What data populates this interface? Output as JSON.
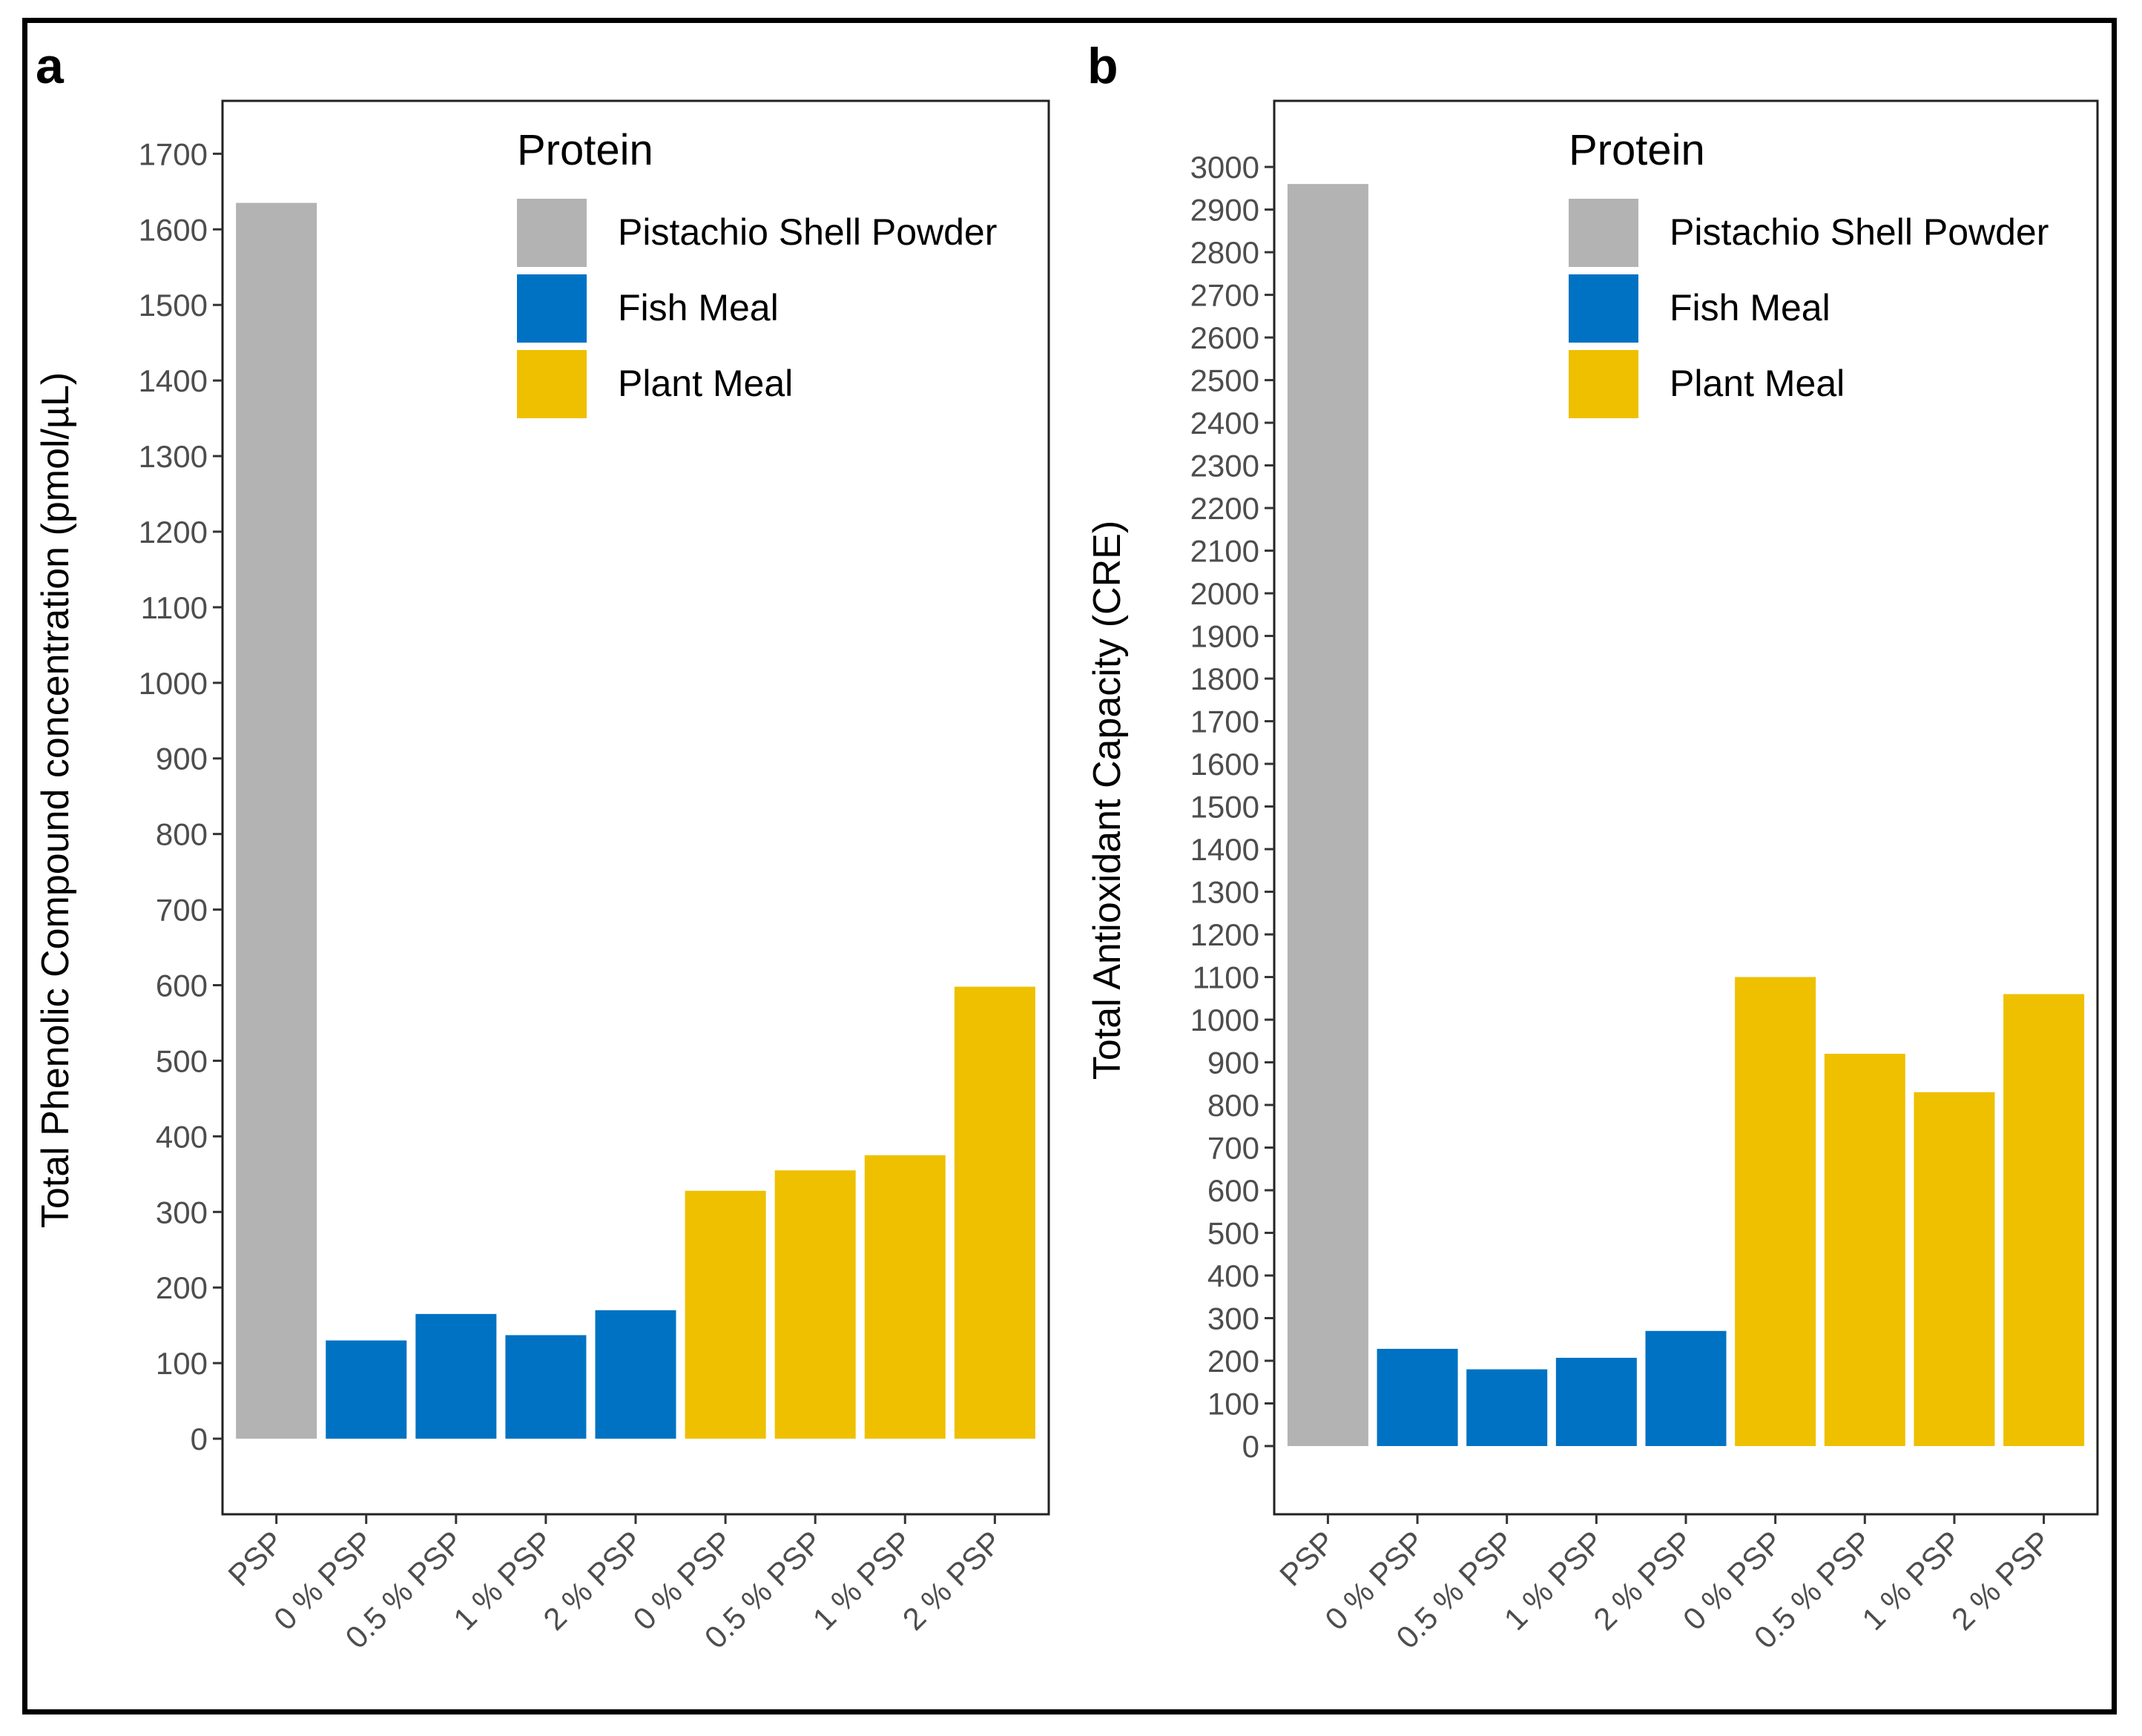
{
  "chart_data": [
    {
      "panel_label": "a",
      "type": "bar",
      "ylabel": "Total Phenolic Compound concentration (pmol/µL)",
      "xlabel": "",
      "categories": [
        "PSP",
        "0 % PSP",
        "0.5 % PSP",
        "1 % PSP",
        "2 % PSP",
        "0 % PSP",
        "0.5 % PSP",
        "1 % PSP",
        "2 % PSP"
      ],
      "groups": [
        "Pistachio Shell Powder",
        "Fish Meal",
        "Fish Meal",
        "Fish Meal",
        "Fish Meal",
        "Plant Meal",
        "Plant Meal",
        "Plant Meal",
        "Plant Meal"
      ],
      "values": [
        1635,
        130,
        165,
        137,
        170,
        328,
        355,
        375,
        598
      ],
      "ylim": [
        -100,
        1770
      ],
      "yticks": [
        0,
        100,
        200,
        300,
        400,
        500,
        600,
        700,
        800,
        900,
        1000,
        1100,
        1200,
        1300,
        1400,
        1500,
        1600,
        1700
      ],
      "legend": {
        "title": "Protein",
        "placement": "top-right",
        "entries": [
          {
            "label": "Pistachio Shell Powder",
            "color": "#b3b3b3"
          },
          {
            "label": "Fish Meal",
            "color": "#0072c3"
          },
          {
            "label": "Plant Meal",
            "color": "#eec000"
          }
        ]
      },
      "grid": false
    },
    {
      "panel_label": "b",
      "type": "bar",
      "ylabel": "Total Antioxidant Capacity (CRE)",
      "xlabel": "",
      "categories": [
        "PSP",
        "0 % PSP",
        "0.5 % PSP",
        "1 % PSP",
        "2 % PSP",
        "0 % PSP",
        "0.5 % PSP",
        "1 % PSP",
        "2 % PSP"
      ],
      "groups": [
        "Pistachio Shell Powder",
        "Fish Meal",
        "Fish Meal",
        "Fish Meal",
        "Fish Meal",
        "Plant Meal",
        "Plant Meal",
        "Plant Meal",
        "Plant Meal"
      ],
      "values": [
        2960,
        228,
        180,
        207,
        270,
        1100,
        920,
        830,
        1060
      ],
      "ylim": [
        -160,
        3155
      ],
      "yticks": [
        0,
        100,
        200,
        300,
        400,
        500,
        600,
        700,
        800,
        900,
        1000,
        1100,
        1200,
        1300,
        1400,
        1500,
        1600,
        1700,
        1800,
        1900,
        2000,
        2100,
        2200,
        2300,
        2400,
        2500,
        2600,
        2700,
        2800,
        2900,
        3000
      ],
      "legend": {
        "title": "Protein",
        "placement": "top-right",
        "entries": [
          {
            "label": "Pistachio Shell Powder",
            "color": "#b3b3b3"
          },
          {
            "label": "Fish Meal",
            "color": "#0072c3"
          },
          {
            "label": "Plant Meal",
            "color": "#eec000"
          }
        ]
      },
      "grid": false
    }
  ]
}
